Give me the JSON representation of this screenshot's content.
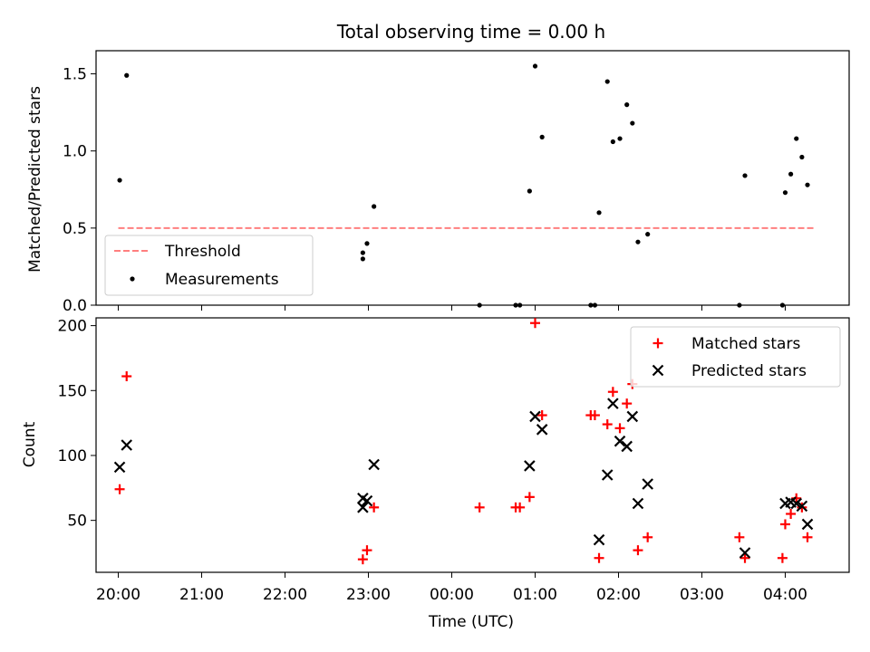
{
  "chart_data": [
    {
      "type": "scatter",
      "title": "Total observing time = 0.00 h",
      "xlabel": "",
      "ylabel": "Matched/Predicted stars",
      "xlim": [
        "19:44",
        "04:46"
      ],
      "ylim": [
        0,
        1.65
      ],
      "yticks": [
        0,
        0.5,
        1.0,
        1.5
      ],
      "ytick_labels": [
        "0.0",
        "0.5",
        "1.0",
        "1.5"
      ],
      "grid": false,
      "legend_position": "lower-left",
      "series": [
        {
          "name": "Threshold",
          "kind": "dashed-line",
          "color": "#ff7f7f",
          "points": [
            {
              "x": "20:00",
              "y": 0.5
            },
            {
              "x": "04:22",
              "y": 0.5
            }
          ]
        },
        {
          "name": "Measurements",
          "kind": "dot",
          "color": "#000000",
          "points": [
            {
              "x": "20:01",
              "y": 0.81
            },
            {
              "x": "20:06",
              "y": 1.49
            },
            {
              "x": "22:56",
              "y": 0.3
            },
            {
              "x": "22:56",
              "y": 0.34
            },
            {
              "x": "22:59",
              "y": 0.4
            },
            {
              "x": "23:04",
              "y": 0.64
            },
            {
              "x": "00:20",
              "y": 0.0
            },
            {
              "x": "00:46",
              "y": 0.0
            },
            {
              "x": "00:49",
              "y": 0.0
            },
            {
              "x": "00:56",
              "y": 0.74
            },
            {
              "x": "01:00",
              "y": 1.55
            },
            {
              "x": "01:05",
              "y": 1.09
            },
            {
              "x": "01:40",
              "y": 0.0
            },
            {
              "x": "01:43",
              "y": 0.0
            },
            {
              "x": "01:46",
              "y": 0.6
            },
            {
              "x": "01:52",
              "y": 1.45
            },
            {
              "x": "01:56",
              "y": 1.06
            },
            {
              "x": "02:01",
              "y": 1.08
            },
            {
              "x": "02:06",
              "y": 1.3
            },
            {
              "x": "02:10",
              "y": 1.18
            },
            {
              "x": "02:14",
              "y": 0.41
            },
            {
              "x": "02:21",
              "y": 0.46
            },
            {
              "x": "03:27",
              "y": 0.0
            },
            {
              "x": "03:31",
              "y": 0.84
            },
            {
              "x": "03:58",
              "y": 0.0
            },
            {
              "x": "04:00",
              "y": 0.73
            },
            {
              "x": "04:04",
              "y": 0.85
            },
            {
              "x": "04:08",
              "y": 1.08
            },
            {
              "x": "04:12",
              "y": 0.96
            },
            {
              "x": "04:16",
              "y": 0.78
            }
          ]
        }
      ]
    },
    {
      "type": "scatter",
      "title": "",
      "xlabel": "Time (UTC)",
      "ylabel": "Count",
      "xlim": [
        "19:44",
        "04:46"
      ],
      "ylim": [
        10,
        206
      ],
      "xticks": [
        "20:00",
        "21:00",
        "22:00",
        "23:00",
        "00:00",
        "01:00",
        "02:00",
        "03:00",
        "04:00"
      ],
      "yticks": [
        50,
        100,
        150,
        200
      ],
      "ytick_labels": [
        "50",
        "100",
        "150",
        "200"
      ],
      "grid": false,
      "legend_position": "upper-right",
      "series": [
        {
          "name": "Matched stars",
          "marker": "plus",
          "color": "#ff0000",
          "points": [
            {
              "x": "20:01",
              "y": 74
            },
            {
              "x": "20:06",
              "y": 161
            },
            {
              "x": "22:56",
              "y": 20
            },
            {
              "x": "22:59",
              "y": 27
            },
            {
              "x": "23:04",
              "y": 60
            },
            {
              "x": "00:20",
              "y": 60
            },
            {
              "x": "00:46",
              "y": 60
            },
            {
              "x": "00:49",
              "y": 60
            },
            {
              "x": "00:56",
              "y": 68
            },
            {
              "x": "01:00",
              "y": 202
            },
            {
              "x": "01:05",
              "y": 131
            },
            {
              "x": "01:40",
              "y": 131
            },
            {
              "x": "01:43",
              "y": 131
            },
            {
              "x": "01:46",
              "y": 21
            },
            {
              "x": "01:52",
              "y": 124
            },
            {
              "x": "01:56",
              "y": 149
            },
            {
              "x": "02:01",
              "y": 121
            },
            {
              "x": "02:06",
              "y": 140
            },
            {
              "x": "02:10",
              "y": 155
            },
            {
              "x": "02:14",
              "y": 27
            },
            {
              "x": "02:21",
              "y": 37
            },
            {
              "x": "03:27",
              "y": 37
            },
            {
              "x": "03:31",
              "y": 21
            },
            {
              "x": "03:58",
              "y": 21
            },
            {
              "x": "04:00",
              "y": 47
            },
            {
              "x": "04:04",
              "y": 55
            },
            {
              "x": "04:08",
              "y": 67
            },
            {
              "x": "04:12",
              "y": 60
            },
            {
              "x": "04:16",
              "y": 37
            }
          ]
        },
        {
          "name": "Predicted stars",
          "marker": "x",
          "color": "#000000",
          "points": [
            {
              "x": "20:01",
              "y": 91
            },
            {
              "x": "20:06",
              "y": 108
            },
            {
              "x": "22:56",
              "y": 60
            },
            {
              "x": "22:56",
              "y": 67
            },
            {
              "x": "22:59",
              "y": 65
            },
            {
              "x": "23:04",
              "y": 93
            },
            {
              "x": "00:56",
              "y": 92
            },
            {
              "x": "01:00",
              "y": 130
            },
            {
              "x": "01:05",
              "y": 120
            },
            {
              "x": "01:46",
              "y": 35
            },
            {
              "x": "01:52",
              "y": 85
            },
            {
              "x": "01:56",
              "y": 140
            },
            {
              "x": "02:01",
              "y": 111
            },
            {
              "x": "02:06",
              "y": 107
            },
            {
              "x": "02:10",
              "y": 130
            },
            {
              "x": "02:14",
              "y": 63
            },
            {
              "x": "02:21",
              "y": 78
            },
            {
              "x": "03:31",
              "y": 25
            },
            {
              "x": "04:00",
              "y": 63
            },
            {
              "x": "04:04",
              "y": 64
            },
            {
              "x": "04:08",
              "y": 63
            },
            {
              "x": "04:12",
              "y": 61
            },
            {
              "x": "04:16",
              "y": 47
            }
          ]
        }
      ]
    }
  ]
}
